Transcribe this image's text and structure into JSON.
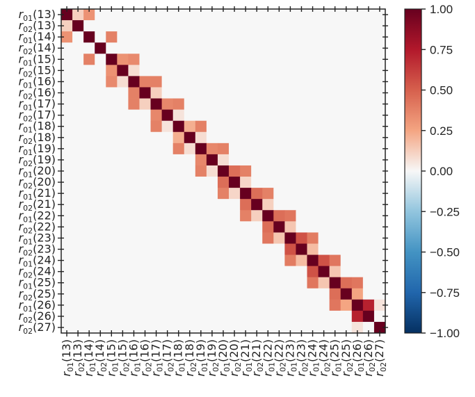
{
  "chart_data": {
    "type": "heatmap",
    "title": "",
    "xlabel": "",
    "ylabel": "",
    "labels": [
      {
        "sym": "r",
        "sub": "01",
        "arg": "(13)"
      },
      {
        "sym": "r",
        "sub": "02",
        "arg": "(13)"
      },
      {
        "sym": "r",
        "sub": "01",
        "arg": "(14)"
      },
      {
        "sym": "r",
        "sub": "02",
        "arg": "(14)"
      },
      {
        "sym": "r",
        "sub": "01",
        "arg": "(15)"
      },
      {
        "sym": "r",
        "sub": "02",
        "arg": "(15)"
      },
      {
        "sym": "r",
        "sub": "01",
        "arg": "(16)"
      },
      {
        "sym": "r",
        "sub": "02",
        "arg": "(16)"
      },
      {
        "sym": "r",
        "sub": "01",
        "arg": "(17)"
      },
      {
        "sym": "r",
        "sub": "02",
        "arg": "(17)"
      },
      {
        "sym": "r",
        "sub": "01",
        "arg": "(18)"
      },
      {
        "sym": "r",
        "sub": "02",
        "arg": "(18)"
      },
      {
        "sym": "r",
        "sub": "01",
        "arg": "(19)"
      },
      {
        "sym": "r",
        "sub": "02",
        "arg": "(19)"
      },
      {
        "sym": "r",
        "sub": "01",
        "arg": "(20)"
      },
      {
        "sym": "r",
        "sub": "02",
        "arg": "(20)"
      },
      {
        "sym": "r",
        "sub": "01",
        "arg": "(21)"
      },
      {
        "sym": "r",
        "sub": "02",
        "arg": "(21)"
      },
      {
        "sym": "r",
        "sub": "01",
        "arg": "(22)"
      },
      {
        "sym": "r",
        "sub": "02",
        "arg": "(22)"
      },
      {
        "sym": "r",
        "sub": "01",
        "arg": "(23)"
      },
      {
        "sym": "r",
        "sub": "02",
        "arg": "(23)"
      },
      {
        "sym": "r",
        "sub": "01",
        "arg": "(24)"
      },
      {
        "sym": "r",
        "sub": "02",
        "arg": "(24)"
      },
      {
        "sym": "r",
        "sub": "01",
        "arg": "(25)"
      },
      {
        "sym": "r",
        "sub": "02",
        "arg": "(25)"
      },
      {
        "sym": "r",
        "sub": "01",
        "arg": "(26)"
      },
      {
        "sym": "r",
        "sub": "02",
        "arg": "(26)"
      },
      {
        "sym": "r",
        "sub": "02",
        "arg": "(27)"
      }
    ],
    "strong_correlations": [
      {
        "i": 0,
        "j": 1,
        "value": 0.12
      },
      {
        "i": 0,
        "j": 2,
        "value": 0.32
      },
      {
        "i": 2,
        "j": 4,
        "value": 0.38
      },
      {
        "i": 4,
        "j": 5,
        "value": 0.32
      },
      {
        "i": 4,
        "j": 6,
        "value": 0.35
      },
      {
        "i": 5,
        "j": 6,
        "value": 0.08
      },
      {
        "i": 6,
        "j": 7,
        "value": 0.38
      },
      {
        "i": 6,
        "j": 8,
        "value": 0.38
      },
      {
        "i": 7,
        "j": 8,
        "value": 0.12
      },
      {
        "i": 8,
        "j": 9,
        "value": 0.36
      },
      {
        "i": 8,
        "j": 10,
        "value": 0.38
      },
      {
        "i": 9,
        "j": 10,
        "value": 0.06
      },
      {
        "i": 10,
        "j": 11,
        "value": 0.22
      },
      {
        "i": 10,
        "j": 12,
        "value": 0.38
      },
      {
        "i": 11,
        "j": 12,
        "value": 0.08
      },
      {
        "i": 12,
        "j": 13,
        "value": 0.36
      },
      {
        "i": 12,
        "j": 14,
        "value": 0.38
      },
      {
        "i": 13,
        "j": 14,
        "value": 0.08
      },
      {
        "i": 14,
        "j": 15,
        "value": 0.45
      },
      {
        "i": 14,
        "j": 16,
        "value": 0.38
      },
      {
        "i": 15,
        "j": 16,
        "value": 0.1
      },
      {
        "i": 16,
        "j": 17,
        "value": 0.45
      },
      {
        "i": 16,
        "j": 18,
        "value": 0.38
      },
      {
        "i": 17,
        "j": 18,
        "value": 0.12
      },
      {
        "i": 18,
        "j": 19,
        "value": 0.45
      },
      {
        "i": 18,
        "j": 20,
        "value": 0.42
      },
      {
        "i": 19,
        "j": 20,
        "value": 0.15
      },
      {
        "i": 20,
        "j": 21,
        "value": 0.55
      },
      {
        "i": 20,
        "j": 22,
        "value": 0.4
      },
      {
        "i": 21,
        "j": 22,
        "value": 0.18
      },
      {
        "i": 22,
        "j": 23,
        "value": 0.55
      },
      {
        "i": 22,
        "j": 24,
        "value": 0.42
      },
      {
        "i": 23,
        "j": 24,
        "value": 0.15
      },
      {
        "i": 24,
        "j": 25,
        "value": 0.45
      },
      {
        "i": 24,
        "j": 26,
        "value": 0.42
      },
      {
        "i": 25,
        "j": 26,
        "value": 0.25
      },
      {
        "i": 26,
        "j": 27,
        "value": 0.72
      },
      {
        "i": 26,
        "j": 28,
        "value": 0.06
      }
    ],
    "diagonal_value": 1.0,
    "colorbar": {
      "colormap": "RdBu_r",
      "range": [
        -1.0,
        1.0
      ],
      "ticks": [
        "1.00",
        "0.75",
        "0.50",
        "0.25",
        "0.00",
        "−0.25",
        "−0.50",
        "−0.75",
        "−1.00"
      ]
    },
    "grid": false,
    "legend": "none"
  }
}
